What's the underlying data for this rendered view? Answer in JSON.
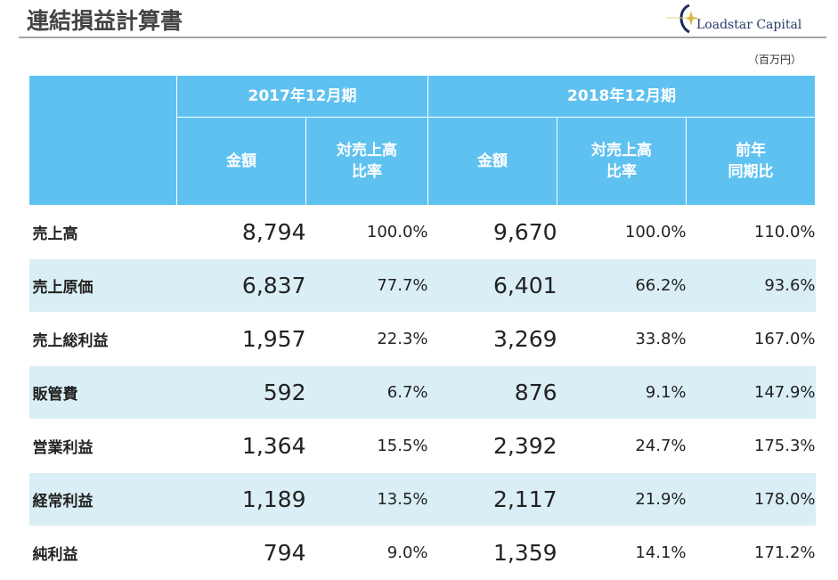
{
  "title": "連結損益計算書",
  "logo": {
    "text": "Loadstar Capital"
  },
  "unit": "（百万円）",
  "header": {
    "period1": "2017年12月期",
    "period2": "2018年12月期",
    "amount": "金額",
    "ratio": "対売上高\n比率",
    "yoy": "前年\n同期比"
  },
  "rows": [
    {
      "label": "売上高",
      "a17": "8,794",
      "r17": "100.0%",
      "a18": "9,670",
      "r18": "100.0%",
      "yoy": "110.0%"
    },
    {
      "label": "売上原価",
      "a17": "6,837",
      "r17": "77.7%",
      "a18": "6,401",
      "r18": "66.2%",
      "yoy": "93.6%"
    },
    {
      "label": "売上総利益",
      "a17": "1,957",
      "r17": "22.3%",
      "a18": "3,269",
      "r18": "33.8%",
      "yoy": "167.0%"
    },
    {
      "label": "販管費",
      "a17": "592",
      "r17": "6.7%",
      "a18": "876",
      "r18": "9.1%",
      "yoy": "147.9%"
    },
    {
      "label": "営業利益",
      "a17": "1,364",
      "r17": "15.5%",
      "a18": "2,392",
      "r18": "24.7%",
      "yoy": "175.3%"
    },
    {
      "label": "経常利益",
      "a17": "1,189",
      "r17": "13.5%",
      "a18": "2,117",
      "r18": "21.9%",
      "yoy": "178.0%"
    },
    {
      "label": "純利益",
      "a17": "794",
      "r17": "9.0%",
      "a18": "1,359",
      "r18": "14.1%",
      "yoy": "171.2%"
    }
  ]
}
